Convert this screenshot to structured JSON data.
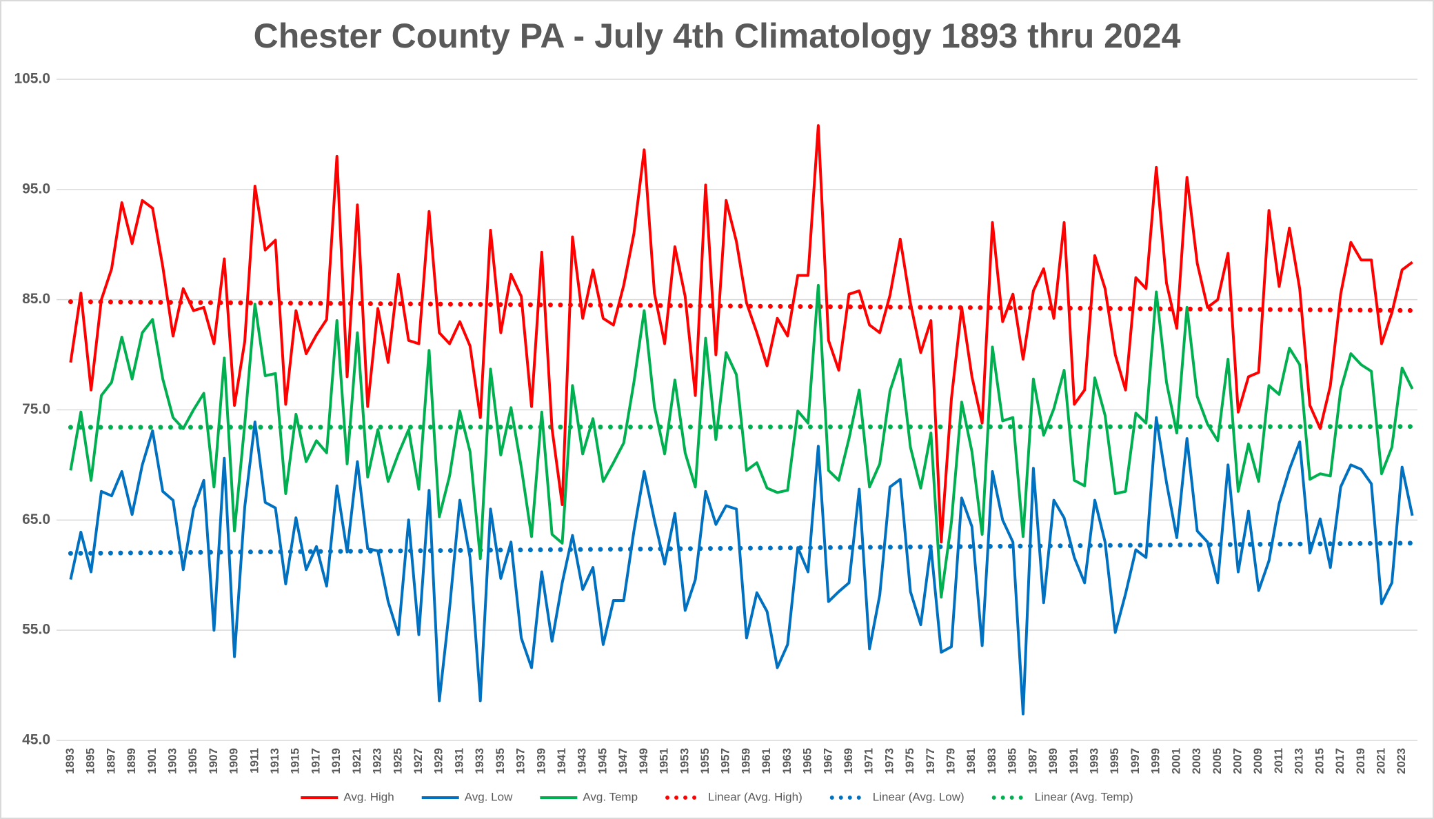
{
  "chart_data": {
    "type": "line",
    "title": "Chester County PA - July 4th Climatology 1893 thru 2024",
    "categories": [
      "1893",
      null,
      "1895",
      null,
      "1897",
      null,
      "1899",
      null,
      "1901",
      null,
      "1903",
      null,
      "1905",
      null,
      "1907",
      null,
      "1909",
      null,
      "1911",
      null,
      "1913",
      null,
      "1915",
      null,
      "1917",
      null,
      "1919",
      null,
      "1921",
      null,
      "1923",
      null,
      "1925",
      null,
      "1927",
      null,
      "1929",
      null,
      "1931",
      null,
      "1933",
      null,
      "1935",
      null,
      "1937",
      null,
      "1939",
      null,
      "1941",
      null,
      "1943",
      null,
      "1945",
      null,
      "1947",
      null,
      "1949",
      null,
      "1951",
      null,
      "1953",
      null,
      "1955",
      null,
      "1957",
      null,
      "1959",
      null,
      "1961",
      null,
      "1963",
      null,
      "1965",
      null,
      "1967",
      null,
      "1969",
      null,
      "1971",
      null,
      "1973",
      null,
      "1975",
      null,
      "1977",
      null,
      "1979",
      null,
      "1981",
      null,
      "1983",
      null,
      "1985",
      null,
      "1987",
      null,
      "1989",
      null,
      "1991",
      null,
      "1993",
      null,
      "1995",
      null,
      "1997",
      null,
      "1999",
      null,
      "2001",
      null,
      "2003",
      null,
      "2005",
      null,
      "2007",
      null,
      "2009",
      null,
      "2011",
      null,
      "2013",
      null,
      "2015",
      null,
      "2017",
      null,
      "2019",
      null,
      "2021",
      null,
      "2023",
      null
    ],
    "series": [
      {
        "name": "Avg. High",
        "color": "#ff0000",
        "trend": {
          "name": "Linear (Avg. High)",
          "style": "dotted"
        },
        "values": [
          79.3,
          85.6,
          76.8,
          85.0,
          87.8,
          93.8,
          90.1,
          94.0,
          93.3,
          88.0,
          81.7,
          86.0,
          84.0,
          84.3,
          81.0,
          88.7,
          75.4,
          81.2,
          95.3,
          89.5,
          90.4,
          75.5,
          84.0,
          80.1,
          81.8,
          83.2,
          98.0,
          78.0,
          93.6,
          75.3,
          84.2,
          79.3,
          87.3,
          81.3,
          81.0,
          93.0,
          82.0,
          81.0,
          83.0,
          80.8,
          74.3,
          91.3,
          82.0,
          87.3,
          85.3,
          75.3,
          89.3,
          73.3,
          66.4,
          90.7,
          83.3,
          87.7,
          83.3,
          82.7,
          86.3,
          91.0,
          98.6,
          85.6,
          81.0,
          89.8,
          85.3,
          76.3,
          95.4,
          80.0,
          94.0,
          90.3,
          84.7,
          82.0,
          79.0,
          83.3,
          81.7,
          87.2,
          87.2,
          100.8,
          81.3,
          78.6,
          85.5,
          85.8,
          82.7,
          82.0,
          85.4,
          90.5,
          84.7,
          80.2,
          83.1,
          63.0,
          76.0,
          84.3,
          78.0,
          73.8,
          92.0,
          83.0,
          85.5,
          79.6,
          85.8,
          87.8,
          83.3,
          92.0,
          75.5,
          76.8,
          89.0,
          86.0,
          80.0,
          76.8,
          87.0,
          86.0,
          97.0,
          86.5,
          82.4,
          96.1,
          88.3,
          84.3,
          85.0,
          89.2,
          74.8,
          78.0,
          78.4,
          93.1,
          86.2,
          91.5,
          86.0,
          75.4,
          73.3,
          77.2,
          85.5,
          90.2,
          88.6,
          88.6,
          81.0,
          83.8,
          87.7,
          88.4
        ]
      },
      {
        "name": "Avg. Low",
        "color": "#0070c0",
        "trend": {
          "name": "Linear (Avg. Low)",
          "style": "dotted"
        },
        "values": [
          59.6,
          63.9,
          60.3,
          67.6,
          67.2,
          69.4,
          65.5,
          70.0,
          73.1,
          67.6,
          66.8,
          60.5,
          66.0,
          68.6,
          55.0,
          70.6,
          52.6,
          66.2,
          73.9,
          66.6,
          66.1,
          59.2,
          65.2,
          60.5,
          62.6,
          59.0,
          68.1,
          62.1,
          70.3,
          62.4,
          62.2,
          57.6,
          54.6,
          65.0,
          54.6,
          67.7,
          48.6,
          57.0,
          66.8,
          61.6,
          48.6,
          66.0,
          59.7,
          63.0,
          54.3,
          51.6,
          60.3,
          54.0,
          59.3,
          63.6,
          58.7,
          60.7,
          53.7,
          57.7,
          57.7,
          64.0,
          69.4,
          65.0,
          61.0,
          65.6,
          56.8,
          59.6,
          67.6,
          64.6,
          66.3,
          66.0,
          54.3,
          58.4,
          56.7,
          51.6,
          53.7,
          62.5,
          60.3,
          71.7,
          57.6,
          58.5,
          59.3,
          67.8,
          53.3,
          58.2,
          68.0,
          68.7,
          58.5,
          55.5,
          62.6,
          53.0,
          53.5,
          67.0,
          64.4,
          53.6,
          69.4,
          65.0,
          63.0,
          47.4,
          69.7,
          57.5,
          66.8,
          65.2,
          61.6,
          59.3,
          66.8,
          63.0,
          54.8,
          58.3,
          62.3,
          61.6,
          74.3,
          68.4,
          63.4,
          72.4,
          64.0,
          63.0,
          59.3,
          70.0,
          60.3,
          65.8,
          58.6,
          61.3,
          66.5,
          69.6,
          72.1,
          62.0,
          65.1,
          60.7,
          68.0,
          70.0,
          69.6,
          68.3,
          57.4,
          59.3,
          69.8,
          65.4
        ]
      },
      {
        "name": "Avg. Temp",
        "color": "#00b050",
        "trend": {
          "name": "Linear (Avg. Temp)",
          "style": "dotted"
        },
        "values": [
          69.5,
          74.8,
          68.6,
          76.3,
          77.5,
          81.6,
          77.8,
          82.0,
          83.2,
          77.8,
          74.3,
          73.3,
          75.0,
          76.5,
          68.0,
          79.7,
          64.0,
          73.7,
          84.6,
          78.1,
          78.3,
          67.4,
          74.6,
          70.3,
          72.2,
          71.1,
          83.1,
          70.1,
          82.0,
          68.9,
          73.2,
          68.5,
          71.0,
          73.2,
          67.8,
          80.4,
          65.3,
          69.0,
          74.9,
          71.2,
          61.5,
          78.7,
          70.9,
          75.2,
          69.8,
          63.5,
          74.8,
          63.7,
          62.9,
          77.2,
          71.0,
          74.2,
          68.5,
          70.2,
          72.0,
          77.5,
          84.0,
          75.3,
          71.0,
          77.7,
          71.1,
          68.0,
          81.5,
          72.3,
          80.2,
          78.2,
          69.5,
          70.2,
          67.9,
          67.5,
          67.7,
          74.9,
          73.8,
          86.3,
          69.5,
          68.6,
          72.4,
          76.8,
          68.0,
          70.1,
          76.7,
          79.6,
          71.6,
          67.9,
          72.9,
          58.0,
          64.8,
          75.7,
          71.2,
          63.7,
          80.7,
          74.0,
          74.3,
          63.5,
          77.8,
          72.7,
          75.1,
          78.6,
          68.6,
          68.1,
          77.9,
          74.5,
          67.4,
          67.6,
          74.7,
          73.8,
          85.7,
          77.5,
          72.9,
          84.3,
          76.2,
          73.7,
          72.2,
          79.6,
          67.6,
          71.9,
          68.5,
          77.2,
          76.4,
          80.6,
          79.1,
          68.7,
          69.2,
          69.0,
          76.8,
          80.1,
          79.1,
          78.5,
          69.2,
          71.6,
          78.8,
          76.9
        ]
      }
    ],
    "ylim": [
      45,
      105
    ],
    "yticks": [
      {
        "value": 45,
        "label": "45.0"
      },
      {
        "value": 55,
        "label": "55.0"
      },
      {
        "value": 65,
        "label": "65.0"
      },
      {
        "value": 75,
        "label": "75.0"
      },
      {
        "value": 85,
        "label": "85.0"
      },
      {
        "value": 95,
        "label": "95.0"
      },
      {
        "value": 105,
        "label": "105.0"
      }
    ],
    "grid": true,
    "legend": "bottom"
  }
}
